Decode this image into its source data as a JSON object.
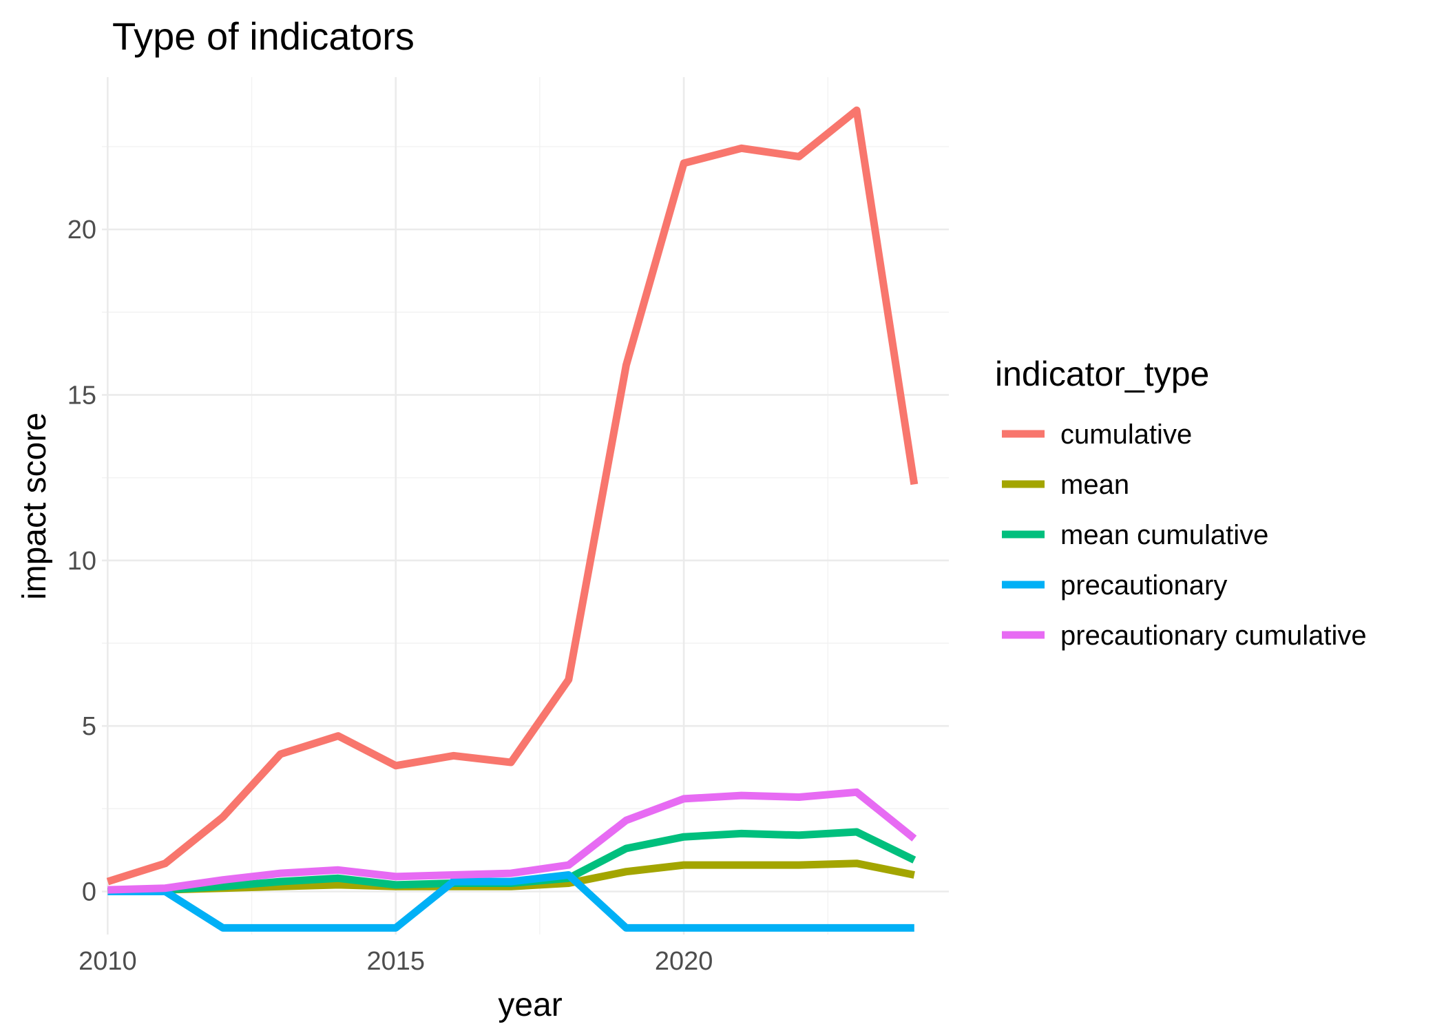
{
  "chart_data": {
    "type": "line",
    "title": "Type of indicators",
    "xlabel": "year",
    "ylabel": "impact score",
    "xlim": [
      2009.9,
      2024.6
    ],
    "ylim": [
      -1.3,
      24.6
    ],
    "x_ticks": [
      2010,
      2015,
      2020
    ],
    "y_ticks": [
      0,
      5,
      10,
      15,
      20
    ],
    "grid": true,
    "legend": {
      "title": "indicator_type",
      "position": "right"
    },
    "x": [
      2010,
      2011,
      2012,
      2013,
      2014,
      2015,
      2016,
      2017,
      2018,
      2019,
      2020,
      2021,
      2022,
      2023,
      2024
    ],
    "series": [
      {
        "name": "cumulative",
        "color": "#F8766D",
        "values": [
          0.3,
          0.85,
          2.25,
          4.15,
          4.7,
          3.8,
          4.1,
          3.9,
          6.4,
          15.9,
          22.0,
          22.45,
          22.2,
          23.6,
          12.3
        ]
      },
      {
        "name": "mean",
        "color": "#A3A500",
        "values": [
          0.0,
          0.05,
          0.1,
          0.15,
          0.2,
          0.15,
          0.15,
          0.15,
          0.25,
          0.6,
          0.8,
          0.8,
          0.8,
          0.85,
          0.5
        ]
      },
      {
        "name": "mean cumulative",
        "color": "#00BF7D",
        "values": [
          0.0,
          0.05,
          0.15,
          0.3,
          0.4,
          0.2,
          0.25,
          0.25,
          0.4,
          1.3,
          1.65,
          1.75,
          1.7,
          1.8,
          0.95
        ]
      },
      {
        "name": "precautionary",
        "color": "#00B0F6",
        "values": [
          0.0,
          0.0,
          -1.1,
          -1.1,
          -1.1,
          -1.1,
          0.3,
          0.3,
          0.5,
          -1.1,
          -1.1,
          -1.1,
          -1.1,
          -1.1,
          -1.1
        ]
      },
      {
        "name": "precautionary cumulative",
        "color": "#E76BF3",
        "values": [
          0.05,
          0.1,
          0.35,
          0.55,
          0.65,
          0.45,
          0.5,
          0.55,
          0.8,
          2.15,
          2.8,
          2.9,
          2.85,
          3.0,
          1.6
        ]
      }
    ]
  }
}
